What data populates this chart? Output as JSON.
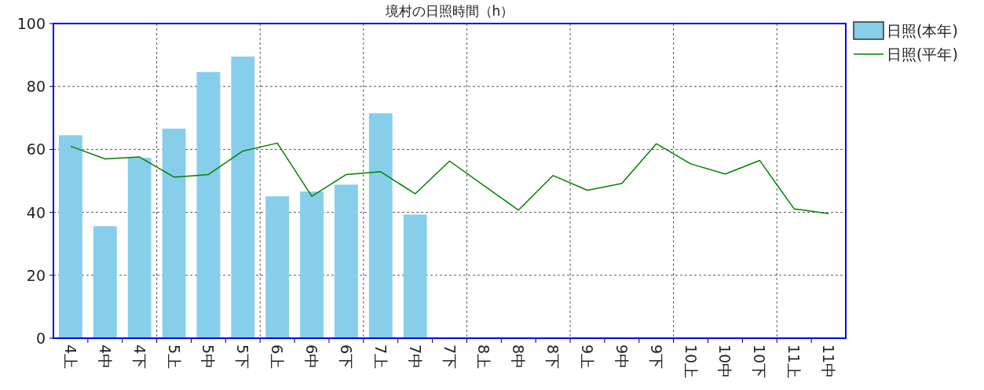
{
  "chart_data": {
    "type": "bar",
    "title": "境村の日照時間（h）",
    "categories": [
      "4上",
      "4中",
      "4下",
      "5上",
      "5中",
      "5下",
      "6上",
      "6中",
      "6下",
      "7上",
      "7中",
      "7下",
      "8上",
      "8中",
      "8下",
      "9上",
      "9中",
      "9下",
      "10上",
      "10中",
      "10下",
      "11上",
      "11中"
    ],
    "series": [
      {
        "name": "日照(本年)",
        "color": "#87ceeb",
        "values": [
          64.5,
          35.6,
          57.3,
          66.6,
          84.6,
          89.5,
          45.1,
          46.6,
          48.8,
          71.5,
          39.3,
          null,
          null,
          null,
          null,
          null,
          null,
          null,
          null,
          null,
          null,
          null,
          null
        ]
      },
      {
        "name": "日照(平年)",
        "type": "line",
        "color": "#008000",
        "values": [
          61,
          57,
          57.6,
          51.2,
          52,
          59.5,
          62,
          45.1,
          52,
          52.9,
          45.9,
          56.3,
          48.5,
          40.7,
          51.7,
          47,
          49.2,
          61.8,
          55.4,
          52.2,
          56.5,
          41.1,
          39.6
        ]
      }
    ],
    "ylim": [
      0,
      100
    ],
    "yticks": [
      0,
      20,
      40,
      60,
      80,
      100
    ],
    "grid": true,
    "legend": "right"
  }
}
